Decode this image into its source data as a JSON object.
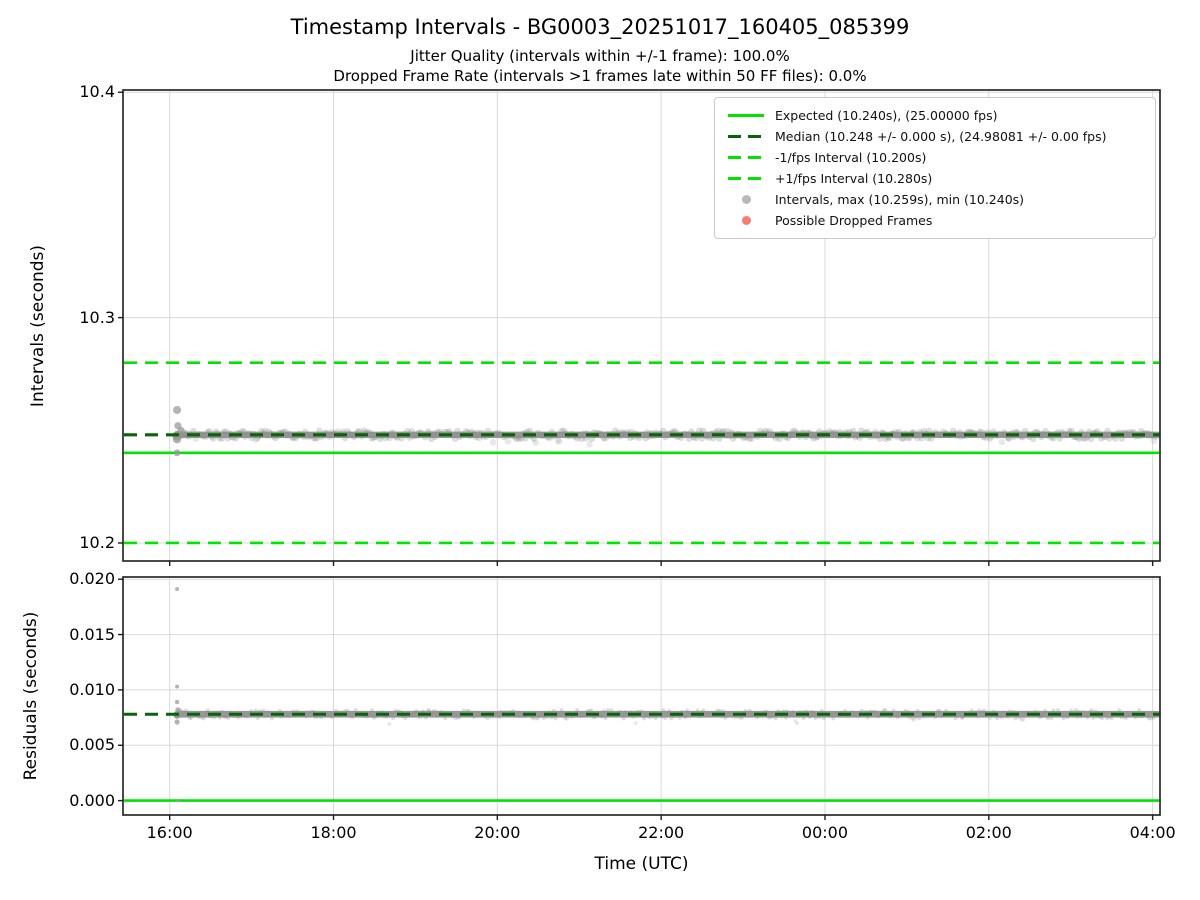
{
  "header": {
    "title": "Timestamp Intervals - BG0003_20251017_160405_085399",
    "subtitle_jitter": "Jitter Quality (intervals within +/-1 frame): 100.0%",
    "subtitle_dropped": "Dropped Frame Rate (intervals >1 frames late within 50 FF files): 0.0%",
    "jitter_quality_pct": "100.0%",
    "dropped_frame_rate_pct": "0.0%"
  },
  "colors": {
    "lime": "#00e400",
    "dark_green": "#086408",
    "scatter_gray": "#909090",
    "dropped_red": "#f4645a",
    "grid": "#d8d8d8",
    "spine": "#1c1c1c"
  },
  "legend": {
    "items": [
      {
        "label": "Expected (10.240s), (25.00000 fps)",
        "type": "solid-line",
        "color": "#00e400"
      },
      {
        "label": "Median (10.248 +/- 0.000 s), (24.98081 +/- 0.00 fps)",
        "type": "dashed-line",
        "color": "#086408"
      },
      {
        "label": "-1/fps Interval (10.200s)",
        "type": "dashed-line",
        "color": "#00e400"
      },
      {
        "label": "+1/fps Interval (10.280s)",
        "type": "dashed-line",
        "color": "#00e400"
      },
      {
        "label": "Intervals, max (10.259s), min (10.240s)",
        "type": "dot",
        "color": "#ababab"
      },
      {
        "label": "Possible Dropped Frames",
        "type": "dot",
        "color": "#f4645a"
      }
    ]
  },
  "axes": {
    "xlabel": "Time (UTC)",
    "x_ticks": [
      "16:00",
      "18:00",
      "20:00",
      "22:00",
      "00:00",
      "02:00",
      "04:00"
    ],
    "x_tick_hours": [
      16,
      18,
      20,
      22,
      24,
      26,
      28
    ],
    "xlim_hours": [
      15.43,
      28.09
    ]
  },
  "chart_data": [
    {
      "type": "scatter",
      "panel": "intervals",
      "title": "Timestamp Intervals - BG0003_20251017_160405_085399",
      "ylabel": "Intervals (seconds)",
      "xlabel": "Time (UTC)",
      "ylim": [
        10.192,
        10.401
      ],
      "yticks": [
        "10.2",
        "10.3",
        "10.4"
      ],
      "ytick_values": [
        10.2,
        10.3,
        10.4
      ],
      "grid": true,
      "hlines": [
        {
          "name": "expected",
          "value": 10.24,
          "style": "solid",
          "color": "#00e400",
          "layer": "under",
          "width": 2.6
        },
        {
          "name": "minus-1fps-interval",
          "value": 10.2,
          "style": "dashed",
          "color": "#00e400",
          "layer": "under",
          "width": 2.6
        },
        {
          "name": "plus-1fps-interval",
          "value": 10.28,
          "style": "dashed",
          "color": "#00e400",
          "layer": "under",
          "width": 2.6
        },
        {
          "name": "median",
          "value": 10.248,
          "style": "dashed",
          "color": "#086408",
          "layer": "over",
          "width": 3.2
        }
      ],
      "band": {
        "value": 10.248,
        "start_hour": 16.09,
        "end_hour": 28.06,
        "spread_s": 0.0013,
        "dot_r": 3.3
      },
      "cluster_points": [
        {
          "hour": 16.09,
          "value": 10.259,
          "r": 4.0
        },
        {
          "hour": 16.1,
          "value": 10.252,
          "r": 3.6
        },
        {
          "hour": 16.14,
          "value": 10.25,
          "r": 3.4
        },
        {
          "hour": 16.09,
          "value": 10.246,
          "r": 4.2
        },
        {
          "hour": 16.09,
          "value": 10.24,
          "r": 3.4
        }
      ],
      "stats": {
        "max_s": 10.259,
        "min_s": 10.24,
        "median_s": 10.248,
        "expected_s": 10.24,
        "fps": 25.0
      }
    },
    {
      "type": "scatter",
      "panel": "residuals",
      "ylabel": "Residuals (seconds)",
      "xlabel": "Time (UTC)",
      "ylim": [
        -0.0013,
        0.0202
      ],
      "yticks": [
        "0.000",
        "0.005",
        "0.010",
        "0.015",
        "0.020"
      ],
      "ytick_values": [
        0.0,
        0.005,
        0.01,
        0.015,
        0.02
      ],
      "grid": true,
      "hlines": [
        {
          "name": "expected-zero",
          "value": 0.0,
          "style": "solid",
          "color": "#00e400",
          "layer": "under",
          "width": 2.6
        },
        {
          "name": "median-residual",
          "value": 0.0078,
          "style": "dashed",
          "color": "#086408",
          "layer": "over",
          "width": 3.0
        }
      ],
      "band": {
        "value": 0.0078,
        "start_hour": 16.09,
        "end_hour": 28.06,
        "spread_s": 0.00028,
        "dot_r": 1.9
      },
      "cluster_points": [
        {
          "hour": 16.09,
          "value": 0.0191,
          "r": 2.0
        },
        {
          "hour": 16.09,
          "value": 0.0103,
          "r": 2.0
        },
        {
          "hour": 16.09,
          "value": 0.0089,
          "r": 2.2
        },
        {
          "hour": 16.1,
          "value": 0.0082,
          "r": 2.6
        },
        {
          "hour": 16.09,
          "value": 0.0071,
          "r": 2.6
        },
        {
          "hour": 16.1,
          "value": 0.0,
          "r": 1.7
        }
      ],
      "stats": {
        "median_residual_s": 0.0078,
        "expected_residual_s": 0.0
      }
    }
  ]
}
